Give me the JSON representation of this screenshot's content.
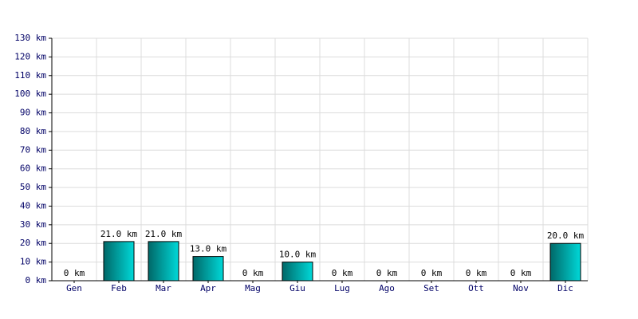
{
  "chart_data": {
    "type": "bar",
    "categories": [
      "Gen",
      "Feb",
      "Mar",
      "Apr",
      "Mag",
      "Giu",
      "Lug",
      "Ago",
      "Set",
      "Ott",
      "Nov",
      "Dic"
    ],
    "values": [
      0,
      21,
      21,
      13,
      0,
      10,
      0,
      0,
      0,
      0,
      0,
      20
    ],
    "value_labels": [
      "0 km",
      "21.0 km",
      "21.0 km",
      "13.0 km",
      "0 km",
      "10.0 km",
      "0 km",
      "0 km",
      "0 km",
      "0 km",
      "0 km",
      "20.0 km"
    ],
    "color": "#00d8d8",
    "ylim": [
      0,
      130
    ],
    "yticks": [
      {
        "value": 0,
        "label": "0 km"
      },
      {
        "value": 10,
        "label": "10 km"
      },
      {
        "value": 20,
        "label": "20 km"
      },
      {
        "value": 30,
        "label": "30 km"
      },
      {
        "value": 40,
        "label": "40 km"
      },
      {
        "value": 50,
        "label": "50 km"
      },
      {
        "value": 60,
        "label": "60 km"
      },
      {
        "value": 70,
        "label": "70 km"
      },
      {
        "value": 80,
        "label": "80 km"
      },
      {
        "value": 90,
        "label": "90 km"
      },
      {
        "value": 100,
        "label": "100 km"
      },
      {
        "value": 110,
        "label": "110 km"
      },
      {
        "value": 120,
        "label": "120 km"
      },
      {
        "value": 130,
        "label": "130 km"
      }
    ],
    "grid": true
  }
}
